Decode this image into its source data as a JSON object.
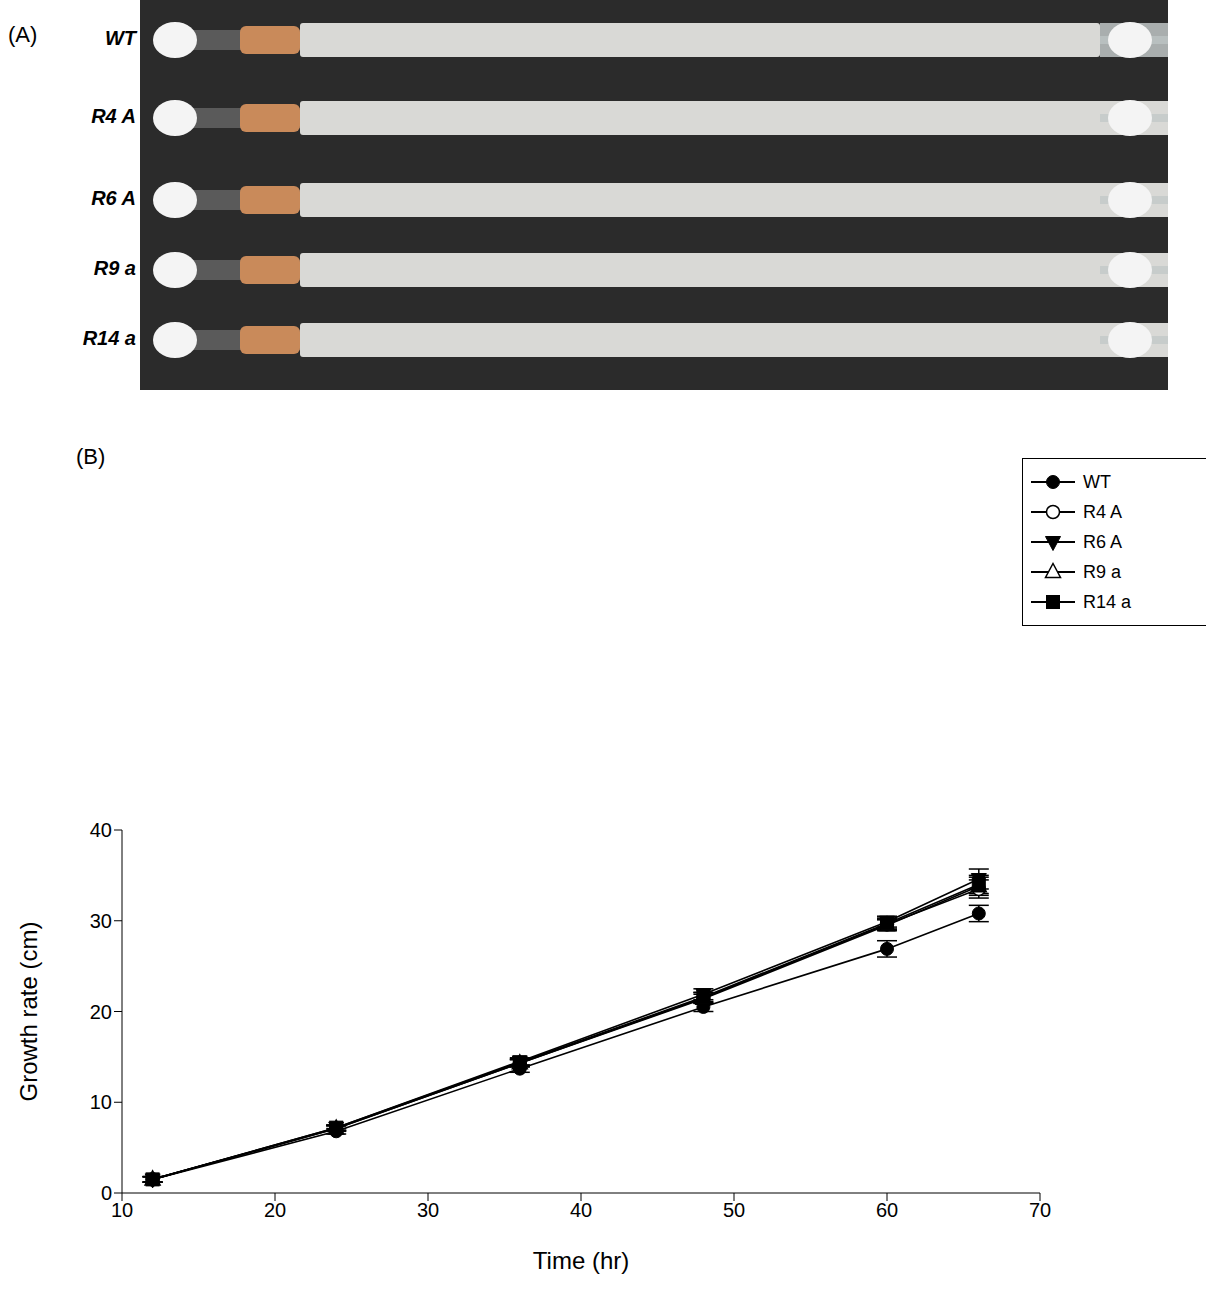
{
  "photo": {
    "label": "(A)",
    "strains": [
      "WT",
      "R4 A",
      "R6 A",
      "R9 a",
      "R14 a"
    ]
  },
  "chart_data": {
    "label": "(B)",
    "type": "line",
    "x_label": "Time (hr)",
    "y_label": "Growth rate (cm)",
    "x": [
      12,
      24,
      36,
      48,
      60,
      66
    ],
    "xlim": [
      10,
      70
    ],
    "xticks": [
      10,
      20,
      30,
      40,
      50,
      60,
      70
    ],
    "ylim": [
      0,
      40
    ],
    "yticks": [
      0,
      10,
      20,
      30,
      40
    ],
    "legend": "upper right",
    "series": [
      {
        "name": "WT",
        "color": "#000000",
        "marker": "circle",
        "values": [
          1.5,
          6.8,
          13.7,
          20.5,
          26.9,
          30.8
        ],
        "errors": [
          0.3,
          0.3,
          0.4,
          0.5,
          0.9,
          0.9
        ]
      },
      {
        "name": "R4 A",
        "color": "#000000",
        "marker": "circle_open",
        "values": [
          1.5,
          7.1,
          14.3,
          21.5,
          29.6,
          33.5
        ],
        "errors": [
          0.3,
          0.3,
          0.4,
          0.6,
          0.6,
          1.0
        ]
      },
      {
        "name": "R6 A",
        "color": "#000000",
        "marker": "triangle_down",
        "values": [
          1.5,
          7.2,
          14.5,
          21.9,
          29.9,
          34.6
        ],
        "errors": [
          0.3,
          0.3,
          0.4,
          0.6,
          0.6,
          1.1
        ]
      },
      {
        "name": "R9 a",
        "color": "#000000",
        "marker": "triangle_up_open",
        "values": [
          1.5,
          7.1,
          14.3,
          21.4,
          29.5,
          33.8
        ],
        "errors": [
          0.3,
          0.3,
          0.4,
          0.5,
          0.6,
          1.0
        ]
      },
      {
        "name": "R14 a",
        "color": "#000000",
        "marker": "square",
        "values": [
          1.5,
          7.2,
          14.4,
          21.6,
          29.7,
          34.0
        ],
        "errors": [
          0.3,
          0.3,
          0.4,
          0.5,
          0.6,
          1.0
        ]
      }
    ]
  }
}
